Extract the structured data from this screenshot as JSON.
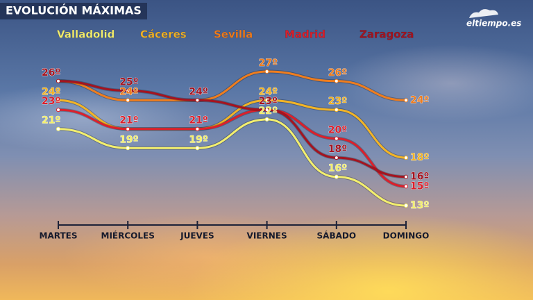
{
  "chart_data": {
    "type": "line",
    "title": "EVOLUCIÓN MÁXIMAS",
    "logo": "eltiempo.es",
    "categories": [
      "MARTES",
      "MIÉRCOLES",
      "JUEVES",
      "VIERNES",
      "SÁBADO",
      "DOMINGO"
    ],
    "series": [
      {
        "name": "Valladolid",
        "color": "#f3ef6e",
        "values": [
          21,
          19,
          19,
          22,
          16,
          13
        ],
        "value_labels": [
          "21º",
          "19º",
          "19º",
          "22º",
          "16º",
          "13º"
        ]
      },
      {
        "name": "Cáceres",
        "color": "#f2b426",
        "values": [
          24,
          21,
          21,
          24,
          23,
          18
        ],
        "value_labels": [
          "24º",
          "21º",
          "21º",
          "24º",
          "23º",
          "18º"
        ]
      },
      {
        "name": "Sevilla",
        "color": "#ef7d1e",
        "values": [
          26,
          24,
          24,
          27,
          26,
          24
        ],
        "value_labels": [
          "26º",
          "24º",
          "24º",
          "27º",
          "26º",
          "24º"
        ]
      },
      {
        "name": "Madrid",
        "color": "#dc1f2b",
        "values": [
          23,
          21,
          21,
          23,
          20,
          15
        ],
        "value_labels": [
          "23º",
          "21º",
          "21º",
          "23º",
          "20º",
          "15º"
        ]
      },
      {
        "name": "Zaragoza",
        "color": "#a5131f",
        "values": [
          26,
          25,
          24,
          23,
          18,
          16
        ],
        "value_labels": [
          "26º",
          "25º",
          "24º",
          "23º",
          "18º",
          "16º"
        ]
      }
    ]
  }
}
